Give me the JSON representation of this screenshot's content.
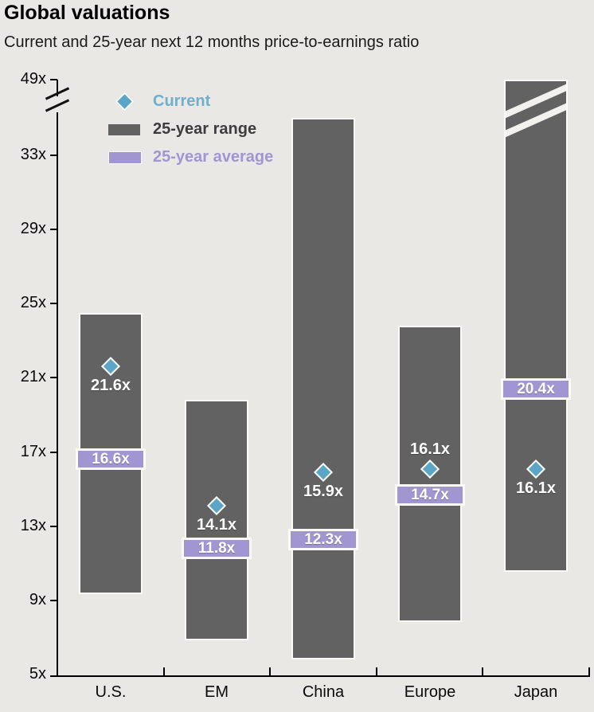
{
  "header": {
    "title": "Global valuations",
    "subtitle": "Current and 25-year next 12 months price-to-earnings ratio"
  },
  "legend": {
    "items": [
      {
        "label": "Current",
        "marker": "diamond-icon",
        "color": "#5ba6c7"
      },
      {
        "label": "25-year range",
        "marker": "bar-swatch",
        "color": "#626262"
      },
      {
        "label": "25-year average",
        "marker": "band-swatch",
        "color": "#a195d2"
      }
    ],
    "position": "top-left"
  },
  "colors": {
    "background": "#e9e8e5",
    "range_bar": "#626262",
    "average_band": "#a195d2",
    "current_marker": "#5ba6c7",
    "bar_outline": "#fbfaf7",
    "axis": "#000000",
    "value_text": "#ffffff"
  },
  "chart_data": {
    "type": "bar",
    "subtype": "floating-range-bar-with-markers",
    "title": "Global valuations",
    "subtitle": "Current and 25-year next 12 months price-to-earnings ratio",
    "categories": [
      "U.S.",
      "EM",
      "China",
      "Europe",
      "Japan"
    ],
    "series": [
      {
        "name": "Current",
        "render": "point",
        "values": [
          21.6,
          14.1,
          15.9,
          16.1,
          16.1
        ],
        "labels": [
          "21.6x",
          "14.1x",
          "15.9x",
          "16.1x",
          "16.1x"
        ]
      },
      {
        "name": "25-year range",
        "render": "range",
        "low": [
          9.5,
          7.0,
          6.0,
          8.0,
          10.7
        ],
        "high": [
          24.5,
          19.8,
          41.0,
          23.8,
          49.0
        ],
        "note": "low/high estimated from axis gridlines; not labeled on chart"
      },
      {
        "name": "25-year average",
        "render": "band",
        "values": [
          16.6,
          11.8,
          12.3,
          14.7,
          20.4
        ],
        "labels": [
          "16.6x",
          "11.8x",
          "12.3x",
          "14.7x",
          "20.4x"
        ]
      }
    ],
    "current_label_side": [
      "below",
      "below",
      "below",
      "above",
      "below"
    ],
    "broken_bar_top": [
      false,
      false,
      false,
      false,
      true
    ],
    "y_tick_labels": [
      "5x",
      "9x",
      "13x",
      "17x",
      "21x",
      "25x",
      "29x",
      "33x",
      "49x"
    ],
    "y_tick_values": [
      5,
      9,
      13,
      17,
      21,
      25,
      29,
      33,
      49
    ],
    "ylim": [
      5,
      49
    ],
    "axis_break": {
      "between": [
        33,
        49
      ]
    },
    "xlabel": "",
    "ylabel": "",
    "grid": false,
    "legend_position": "top-left"
  }
}
